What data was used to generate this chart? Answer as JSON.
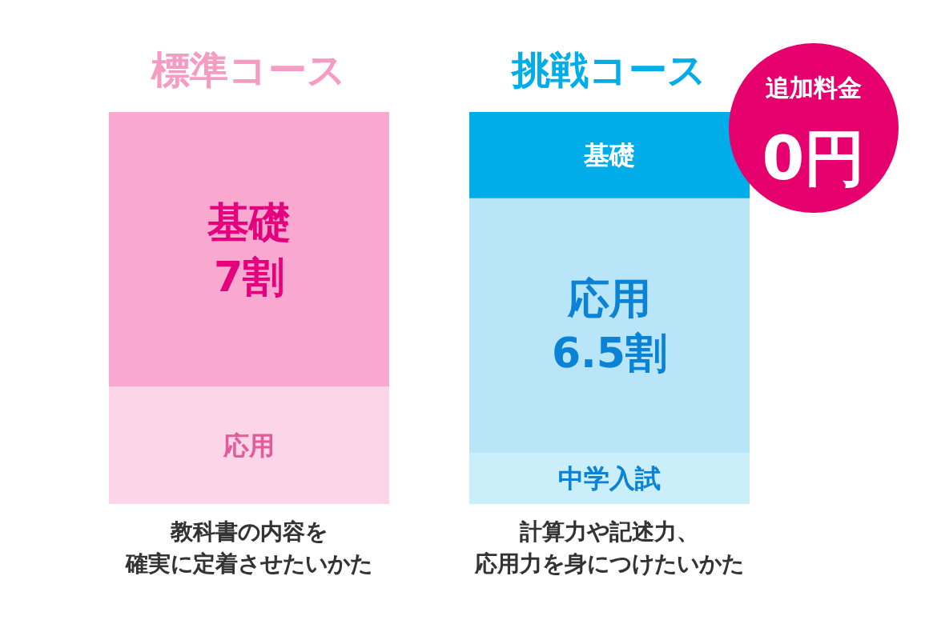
{
  "chart_data": {
    "type": "bar",
    "stacked": true,
    "categories": [
      "標準コース",
      "挑戦コース"
    ],
    "series": [
      {
        "name": "中学入試",
        "colors": [
          null,
          "#cbeefb"
        ],
        "values": [
          null,
          1.3
        ]
      },
      {
        "name": "応用",
        "colors": [
          "#fcd6e8",
          "#b8e5f8"
        ],
        "values": [
          3,
          6.5
        ],
        "value_labels": [
          null,
          "6.5割"
        ]
      },
      {
        "name": "基礎",
        "colors": [
          "#f9a8cf",
          "#00ade9"
        ],
        "values": [
          7,
          2.2
        ],
        "value_labels": [
          "7割",
          null
        ]
      }
    ],
    "annotations": [
      "追加料金",
      "0円",
      "教科書の内容を",
      "確実に定着させたいかた",
      "計算力や記述力、",
      "応用力を身につけたいかた"
    ]
  }
}
